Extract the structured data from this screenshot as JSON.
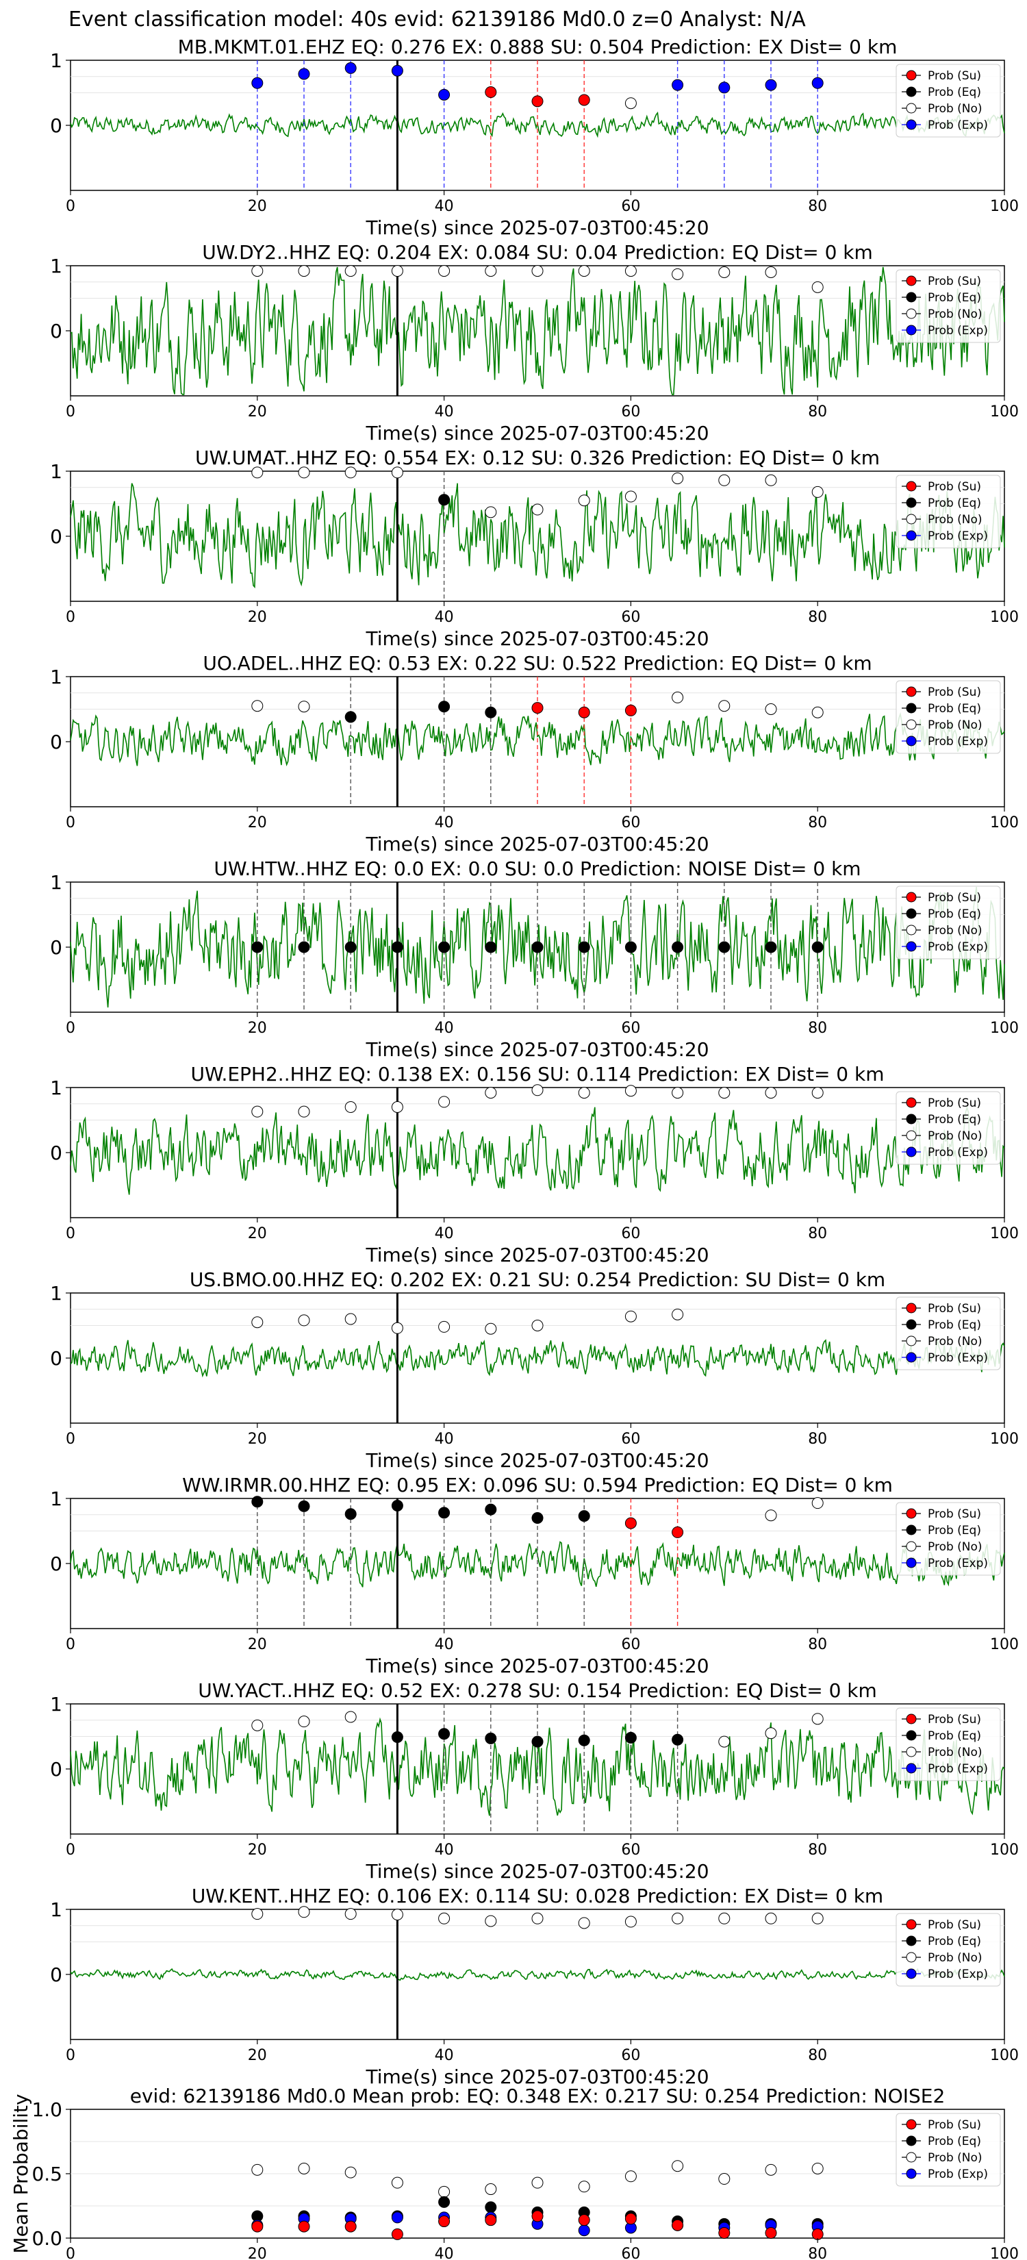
{
  "figure": {
    "title": "Event classification model: 40s evid: 62139186 Md0.0 z=0 Analyst: N/A"
  },
  "legend_labels": [
    "Prob (Su)",
    "Prob (Eq)",
    "Prob (No)",
    "Prob (Exp)"
  ],
  "colors": {
    "waveform": "#008000",
    "su": "#ff0000",
    "eq": "#000000",
    "no": "#ffffff",
    "exp": "#0000ff",
    "ex_line": "#3a3aff",
    "su_line": "#ff3030",
    "eq_line": "#000000"
  },
  "chart_data": [
    {
      "type": "line",
      "title": "MB.MKMT.01.EHZ   EQ: 0.276  EX: 0.888  SU: 0.504   Prediction: EX    Dist= 0 km",
      "xlabel": "Time(s) since 2025-07-03T00:45:20",
      "xlim": [
        0,
        100
      ],
      "ylim": [
        -1,
        1
      ],
      "xticks": [
        "0",
        "20",
        "40",
        "60",
        "80",
        "100"
      ],
      "yticks": [
        "1",
        "0"
      ],
      "vline": 35,
      "legend": "top-right",
      "amp": 0.15,
      "points": [
        {
          "x": 20,
          "y": 0.65,
          "c": "exp"
        },
        {
          "x": 25,
          "y": 0.79,
          "c": "exp"
        },
        {
          "x": 30,
          "y": 0.88,
          "c": "exp"
        },
        {
          "x": 35,
          "y": 0.84,
          "c": "exp"
        },
        {
          "x": 40,
          "y": 0.47,
          "c": "exp"
        },
        {
          "x": 45,
          "y": 0.51,
          "c": "su"
        },
        {
          "x": 50,
          "y": 0.37,
          "c": "su"
        },
        {
          "x": 55,
          "y": 0.39,
          "c": "su"
        },
        {
          "x": 60,
          "y": 0.34,
          "c": "no"
        },
        {
          "x": 65,
          "y": 0.62,
          "c": "exp"
        },
        {
          "x": 70,
          "y": 0.58,
          "c": "exp"
        },
        {
          "x": 75,
          "y": 0.62,
          "c": "exp"
        },
        {
          "x": 80,
          "y": 0.65,
          "c": "exp"
        }
      ]
    },
    {
      "type": "line",
      "title": "UW.DY2..HHZ   EQ: 0.204  EX: 0.084  SU: 0.04   Prediction: EQ    Dist= 0 km",
      "xlabel": "Time(s) since 2025-07-03T00:45:20",
      "xlim": [
        0,
        100
      ],
      "ylim": [
        -1,
        1
      ],
      "xticks": [
        "0",
        "20",
        "40",
        "60",
        "80",
        "100"
      ],
      "yticks": [
        "1",
        "0"
      ],
      "vline": 35,
      "legend": "top-right",
      "amp": 0.85,
      "points": [
        {
          "x": 20,
          "y": 0.92,
          "c": "no"
        },
        {
          "x": 25,
          "y": 0.92,
          "c": "no"
        },
        {
          "x": 30,
          "y": 0.92,
          "c": "no"
        },
        {
          "x": 35,
          "y": 0.92,
          "c": "no"
        },
        {
          "x": 40,
          "y": 0.92,
          "c": "no"
        },
        {
          "x": 45,
          "y": 0.92,
          "c": "no"
        },
        {
          "x": 50,
          "y": 0.92,
          "c": "no"
        },
        {
          "x": 55,
          "y": 0.92,
          "c": "no"
        },
        {
          "x": 60,
          "y": 0.92,
          "c": "no"
        },
        {
          "x": 65,
          "y": 0.87,
          "c": "no"
        },
        {
          "x": 70,
          "y": 0.9,
          "c": "no"
        },
        {
          "x": 75,
          "y": 0.9,
          "c": "no"
        },
        {
          "x": 80,
          "y": 0.67,
          "c": "no"
        }
      ]
    },
    {
      "type": "line",
      "title": "UW.UMAT..HHZ   EQ: 0.554  EX: 0.12  SU: 0.326   Prediction: EQ    Dist= 0 km",
      "xlabel": "Time(s) since 2025-07-03T00:45:20",
      "xlim": [
        0,
        100
      ],
      "ylim": [
        -1,
        1
      ],
      "xticks": [
        "0",
        "20",
        "40",
        "60",
        "80",
        "100"
      ],
      "yticks": [
        "1",
        "0"
      ],
      "vline": 35,
      "legend": "top-right",
      "amp": 0.7,
      "points": [
        {
          "x": 20,
          "y": 0.98,
          "c": "no"
        },
        {
          "x": 25,
          "y": 0.98,
          "c": "no"
        },
        {
          "x": 30,
          "y": 0.98,
          "c": "no"
        },
        {
          "x": 35,
          "y": 0.98,
          "c": "no"
        },
        {
          "x": 40,
          "y": 0.56,
          "c": "eq"
        },
        {
          "x": 45,
          "y": 0.37,
          "c": "no"
        },
        {
          "x": 50,
          "y": 0.41,
          "c": "no"
        },
        {
          "x": 55,
          "y": 0.55,
          "c": "no"
        },
        {
          "x": 60,
          "y": 0.61,
          "c": "no"
        },
        {
          "x": 65,
          "y": 0.89,
          "c": "no"
        },
        {
          "x": 70,
          "y": 0.86,
          "c": "no"
        },
        {
          "x": 75,
          "y": 0.86,
          "c": "no"
        },
        {
          "x": 80,
          "y": 0.68,
          "c": "no"
        }
      ]
    },
    {
      "type": "line",
      "title": "UO.ADEL..HHZ   EQ: 0.53  EX: 0.22  SU: 0.522   Prediction: EQ    Dist= 0 km",
      "xlabel": "Time(s) since 2025-07-03T00:45:20",
      "xlim": [
        0,
        100
      ],
      "ylim": [
        -1,
        1
      ],
      "xticks": [
        "0",
        "20",
        "40",
        "60",
        "80",
        "100"
      ],
      "yticks": [
        "1",
        "0"
      ],
      "vline": 35,
      "legend": "top-right",
      "amp": 0.35,
      "points": [
        {
          "x": 20,
          "y": 0.55,
          "c": "no"
        },
        {
          "x": 25,
          "y": 0.54,
          "c": "no"
        },
        {
          "x": 30,
          "y": 0.38,
          "c": "eq"
        },
        {
          "x": 40,
          "y": 0.54,
          "c": "eq"
        },
        {
          "x": 45,
          "y": 0.45,
          "c": "eq"
        },
        {
          "x": 50,
          "y": 0.52,
          "c": "su"
        },
        {
          "x": 55,
          "y": 0.45,
          "c": "su"
        },
        {
          "x": 60,
          "y": 0.48,
          "c": "su"
        },
        {
          "x": 65,
          "y": 0.68,
          "c": "no"
        },
        {
          "x": 70,
          "y": 0.55,
          "c": "no"
        },
        {
          "x": 75,
          "y": 0.5,
          "c": "no"
        },
        {
          "x": 80,
          "y": 0.45,
          "c": "no"
        }
      ]
    },
    {
      "type": "line",
      "title": "UW.HTW..HHZ   EQ: 0.0  EX: 0.0  SU: 0.0   Prediction: NOISE    Dist= 0 km",
      "xlabel": "Time(s) since 2025-07-03T00:45:20",
      "xlim": [
        0,
        100
      ],
      "ylim": [
        -1,
        1
      ],
      "xticks": [
        "0",
        "20",
        "40",
        "60",
        "80",
        "100"
      ],
      "yticks": [
        "1",
        "0"
      ],
      "vline": 35,
      "legend": "top-right",
      "amp": 0.8,
      "points": [
        {
          "x": 20,
          "y": 0.0,
          "c": "eq"
        },
        {
          "x": 25,
          "y": 0.0,
          "c": "eq"
        },
        {
          "x": 30,
          "y": 0.0,
          "c": "eq"
        },
        {
          "x": 35,
          "y": 0.0,
          "c": "eq"
        },
        {
          "x": 40,
          "y": 0.0,
          "c": "eq"
        },
        {
          "x": 45,
          "y": 0.0,
          "c": "eq"
        },
        {
          "x": 50,
          "y": 0.0,
          "c": "eq"
        },
        {
          "x": 55,
          "y": 0.0,
          "c": "eq"
        },
        {
          "x": 60,
          "y": 0.0,
          "c": "eq"
        },
        {
          "x": 65,
          "y": 0.0,
          "c": "eq"
        },
        {
          "x": 70,
          "y": 0.0,
          "c": "eq"
        },
        {
          "x": 75,
          "y": 0.0,
          "c": "eq"
        },
        {
          "x": 80,
          "y": 0.0,
          "c": "eq"
        }
      ]
    },
    {
      "type": "line",
      "title": "UW.EPH2..HHZ   EQ: 0.138  EX: 0.156  SU: 0.114   Prediction: EX    Dist= 0 km",
      "xlabel": "Time(s) since 2025-07-03T00:45:20",
      "xlim": [
        0,
        100
      ],
      "ylim": [
        -1,
        1
      ],
      "xticks": [
        "0",
        "20",
        "40",
        "60",
        "80",
        "100"
      ],
      "yticks": [
        "1",
        "0"
      ],
      "vline": 35,
      "legend": "top-right",
      "amp": 0.55,
      "points": [
        {
          "x": 20,
          "y": 0.63,
          "c": "no"
        },
        {
          "x": 25,
          "y": 0.63,
          "c": "no"
        },
        {
          "x": 30,
          "y": 0.7,
          "c": "no"
        },
        {
          "x": 35,
          "y": 0.7,
          "c": "no"
        },
        {
          "x": 40,
          "y": 0.78,
          "c": "no"
        },
        {
          "x": 45,
          "y": 0.92,
          "c": "no"
        },
        {
          "x": 50,
          "y": 0.96,
          "c": "no"
        },
        {
          "x": 55,
          "y": 0.92,
          "c": "no"
        },
        {
          "x": 60,
          "y": 0.95,
          "c": "no"
        },
        {
          "x": 65,
          "y": 0.92,
          "c": "no"
        },
        {
          "x": 70,
          "y": 0.92,
          "c": "no"
        },
        {
          "x": 75,
          "y": 0.92,
          "c": "no"
        },
        {
          "x": 80,
          "y": 0.92,
          "c": "no"
        }
      ]
    },
    {
      "type": "line",
      "title": "US.BMO.00.HHZ   EQ: 0.202  EX: 0.21  SU: 0.254   Prediction: SU    Dist= 0 km",
      "xlabel": "Time(s) since 2025-07-03T00:45:20",
      "xlim": [
        0,
        100
      ],
      "ylim": [
        -1,
        1
      ],
      "xticks": [
        "0",
        "20",
        "40",
        "60",
        "80",
        "100"
      ],
      "yticks": [
        "1",
        "0"
      ],
      "vline": 35,
      "legend": "top-right",
      "amp": 0.25,
      "points": [
        {
          "x": 20,
          "y": 0.55,
          "c": "no"
        },
        {
          "x": 25,
          "y": 0.58,
          "c": "no"
        },
        {
          "x": 30,
          "y": 0.6,
          "c": "no"
        },
        {
          "x": 35,
          "y": 0.46,
          "c": "no"
        },
        {
          "x": 40,
          "y": 0.48,
          "c": "no"
        },
        {
          "x": 45,
          "y": 0.45,
          "c": "no"
        },
        {
          "x": 50,
          "y": 0.5,
          "c": "no"
        },
        {
          "x": 60,
          "y": 0.64,
          "c": "no"
        },
        {
          "x": 65,
          "y": 0.67,
          "c": "no"
        }
      ]
    },
    {
      "type": "line",
      "title": "WW.IRMR.00.HHZ   EQ: 0.95  EX: 0.096  SU: 0.594   Prediction: EQ    Dist= 0 km",
      "xlabel": "Time(s) since 2025-07-03T00:45:20",
      "xlim": [
        0,
        100
      ],
      "ylim": [
        -1,
        1
      ],
      "xticks": [
        "0",
        "20",
        "40",
        "60",
        "80",
        "100"
      ],
      "yticks": [
        "1",
        "0"
      ],
      "vline": 35,
      "legend": "top-right",
      "amp": 0.3,
      "points": [
        {
          "x": 20,
          "y": 0.95,
          "c": "eq"
        },
        {
          "x": 25,
          "y": 0.88,
          "c": "eq"
        },
        {
          "x": 30,
          "y": 0.76,
          "c": "eq"
        },
        {
          "x": 35,
          "y": 0.89,
          "c": "eq"
        },
        {
          "x": 40,
          "y": 0.78,
          "c": "eq"
        },
        {
          "x": 45,
          "y": 0.83,
          "c": "eq"
        },
        {
          "x": 50,
          "y": 0.7,
          "c": "eq"
        },
        {
          "x": 55,
          "y": 0.73,
          "c": "eq"
        },
        {
          "x": 60,
          "y": 0.62,
          "c": "su"
        },
        {
          "x": 65,
          "y": 0.48,
          "c": "su"
        },
        {
          "x": 75,
          "y": 0.74,
          "c": "no"
        },
        {
          "x": 80,
          "y": 0.93,
          "c": "no"
        }
      ]
    },
    {
      "type": "line",
      "title": "UW.YACT..HHZ   EQ: 0.52  EX: 0.278  SU: 0.154   Prediction: EQ    Dist= 0 km",
      "xlabel": "Time(s) since 2025-07-03T00:45:20",
      "xlim": [
        0,
        100
      ],
      "ylim": [
        -1,
        1
      ],
      "xticks": [
        "0",
        "20",
        "40",
        "60",
        "80",
        "100"
      ],
      "yticks": [
        "1",
        "0"
      ],
      "vline": 35,
      "legend": "top-right",
      "amp": 0.6,
      "points": [
        {
          "x": 20,
          "y": 0.67,
          "c": "no"
        },
        {
          "x": 25,
          "y": 0.73,
          "c": "no"
        },
        {
          "x": 30,
          "y": 0.8,
          "c": "no"
        },
        {
          "x": 35,
          "y": 0.49,
          "c": "eq"
        },
        {
          "x": 40,
          "y": 0.54,
          "c": "eq"
        },
        {
          "x": 45,
          "y": 0.47,
          "c": "eq"
        },
        {
          "x": 50,
          "y": 0.42,
          "c": "eq"
        },
        {
          "x": 55,
          "y": 0.44,
          "c": "eq"
        },
        {
          "x": 60,
          "y": 0.48,
          "c": "eq"
        },
        {
          "x": 65,
          "y": 0.45,
          "c": "eq"
        },
        {
          "x": 70,
          "y": 0.42,
          "c": "no"
        },
        {
          "x": 75,
          "y": 0.55,
          "c": "no"
        },
        {
          "x": 80,
          "y": 0.77,
          "c": "no"
        }
      ]
    },
    {
      "type": "line",
      "title": "UW.KENT..HHZ   EQ: 0.106  EX: 0.114  SU: 0.028   Prediction: EX    Dist= 0 km",
      "xlabel": "Time(s) since 2025-07-03T00:45:20",
      "xlim": [
        0,
        100
      ],
      "ylim": [
        -1,
        1
      ],
      "xticks": [
        "0",
        "20",
        "40",
        "60",
        "80",
        "100"
      ],
      "yticks": [
        "1",
        "0"
      ],
      "vline": 35,
      "legend": "top-right",
      "amp": 0.07,
      "points": [
        {
          "x": 20,
          "y": 0.93,
          "c": "no"
        },
        {
          "x": 25,
          "y": 0.96,
          "c": "no"
        },
        {
          "x": 30,
          "y": 0.93,
          "c": "no"
        },
        {
          "x": 35,
          "y": 0.92,
          "c": "no"
        },
        {
          "x": 40,
          "y": 0.86,
          "c": "no"
        },
        {
          "x": 45,
          "y": 0.82,
          "c": "no"
        },
        {
          "x": 50,
          "y": 0.86,
          "c": "no"
        },
        {
          "x": 55,
          "y": 0.79,
          "c": "no"
        },
        {
          "x": 60,
          "y": 0.81,
          "c": "no"
        },
        {
          "x": 65,
          "y": 0.86,
          "c": "no"
        },
        {
          "x": 70,
          "y": 0.86,
          "c": "no"
        },
        {
          "x": 75,
          "y": 0.86,
          "c": "no"
        },
        {
          "x": 80,
          "y": 0.86,
          "c": "no"
        }
      ]
    },
    {
      "type": "scatter",
      "title": "evid: 62139186  Md0.0   Mean prob:   EQ: 0.348  EX: 0.217  SU: 0.254   Prediction: NOISE2",
      "ylabel": "Mean Probability",
      "xlim": [
        0,
        100
      ],
      "ylim": [
        0,
        1
      ],
      "xticks": [
        "0",
        "20",
        "40",
        "60",
        "80",
        "100"
      ],
      "yticks": [
        "1.0",
        "0.5",
        "0.0"
      ],
      "legend": "top-right",
      "series": [
        {
          "name": "Prob (No)",
          "c": "no",
          "x": [
            20,
            25,
            30,
            35,
            40,
            45,
            50,
            55,
            60,
            65,
            70,
            75,
            80
          ],
          "y": [
            0.53,
            0.54,
            0.51,
            0.43,
            0.36,
            0.38,
            0.43,
            0.4,
            0.48,
            0.56,
            0.46,
            0.53,
            0.54
          ]
        },
        {
          "name": "Prob (Eq)",
          "c": "eq",
          "x": [
            20,
            25,
            30,
            35,
            40,
            45,
            50,
            55,
            60,
            65,
            70,
            75,
            80
          ],
          "y": [
            0.17,
            0.17,
            0.16,
            0.17,
            0.28,
            0.24,
            0.2,
            0.2,
            0.17,
            0.13,
            0.11,
            0.11,
            0.11
          ]
        },
        {
          "name": "Prob (Exp)",
          "c": "exp",
          "x": [
            20,
            25,
            30,
            35,
            40,
            45,
            50,
            55,
            60,
            65,
            70,
            75,
            80
          ],
          "y": [
            0.1,
            0.15,
            0.15,
            0.16,
            0.16,
            0.16,
            0.11,
            0.06,
            0.08,
            0.1,
            0.08,
            0.1,
            0.09
          ]
        },
        {
          "name": "Prob (Su)",
          "c": "su",
          "x": [
            20,
            25,
            30,
            35,
            40,
            45,
            50,
            55,
            60,
            65,
            70,
            75,
            80
          ],
          "y": [
            0.09,
            0.09,
            0.09,
            0.03,
            0.13,
            0.14,
            0.17,
            0.14,
            0.15,
            0.1,
            0.04,
            0.04,
            0.03
          ]
        }
      ]
    }
  ]
}
